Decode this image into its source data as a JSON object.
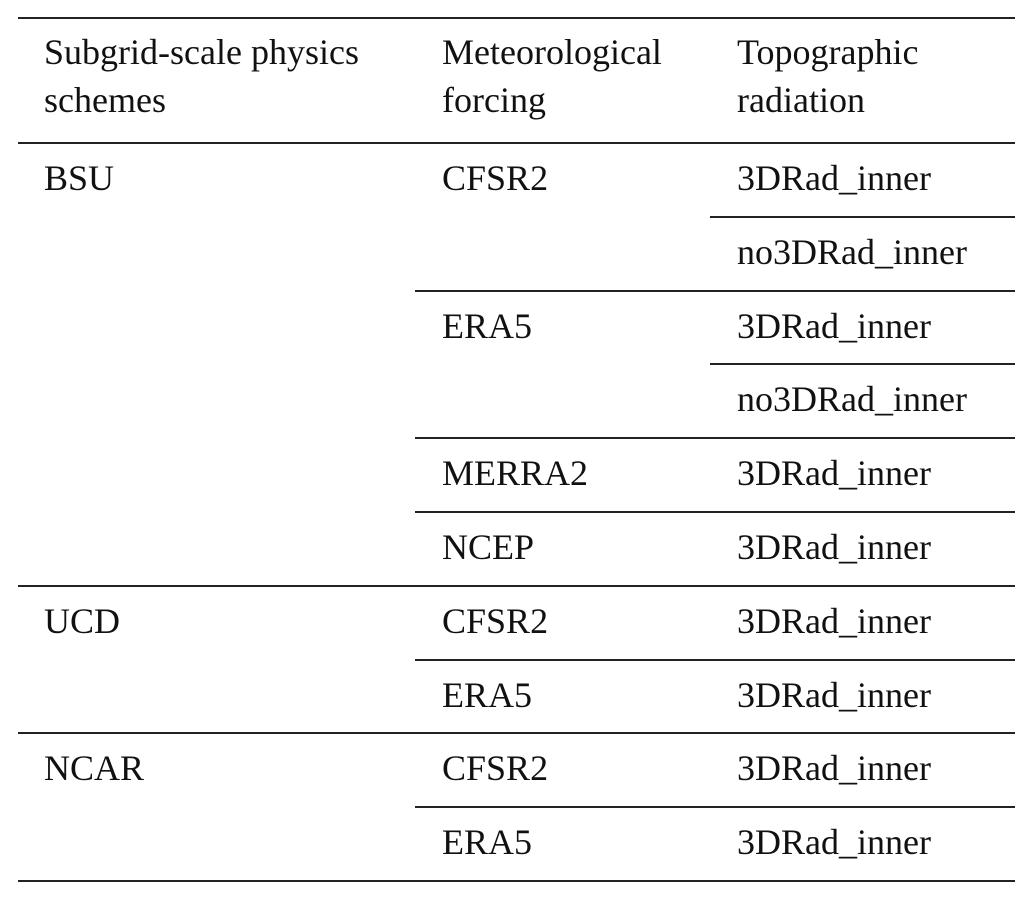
{
  "table": {
    "header": [
      [
        "Subgrid-scale physics",
        "schemes"
      ],
      [
        "Meteorological",
        "forcing"
      ],
      [
        "Topographic",
        "radiation"
      ]
    ],
    "groups": [
      {
        "scheme": "BSU",
        "forcings": [
          {
            "name": "CFSR2",
            "radiation": [
              "3DRad_inner",
              "no3DRad_inner"
            ]
          },
          {
            "name": "ERA5",
            "radiation": [
              "3DRad_inner",
              "no3DRad_inner"
            ]
          },
          {
            "name": "MERRA2",
            "radiation": [
              "3DRad_inner"
            ]
          },
          {
            "name": "NCEP",
            "radiation": [
              "3DRad_inner"
            ]
          }
        ]
      },
      {
        "scheme": "UCD",
        "forcings": [
          {
            "name": "CFSR2",
            "radiation": [
              "3DRad_inner"
            ]
          },
          {
            "name": "ERA5",
            "radiation": [
              "3DRad_inner"
            ]
          }
        ]
      },
      {
        "scheme": "NCAR",
        "forcings": [
          {
            "name": "CFSR2",
            "radiation": [
              "3DRad_inner"
            ]
          },
          {
            "name": "ERA5",
            "radiation": [
              "3DRad_inner"
            ]
          }
        ]
      }
    ]
  }
}
